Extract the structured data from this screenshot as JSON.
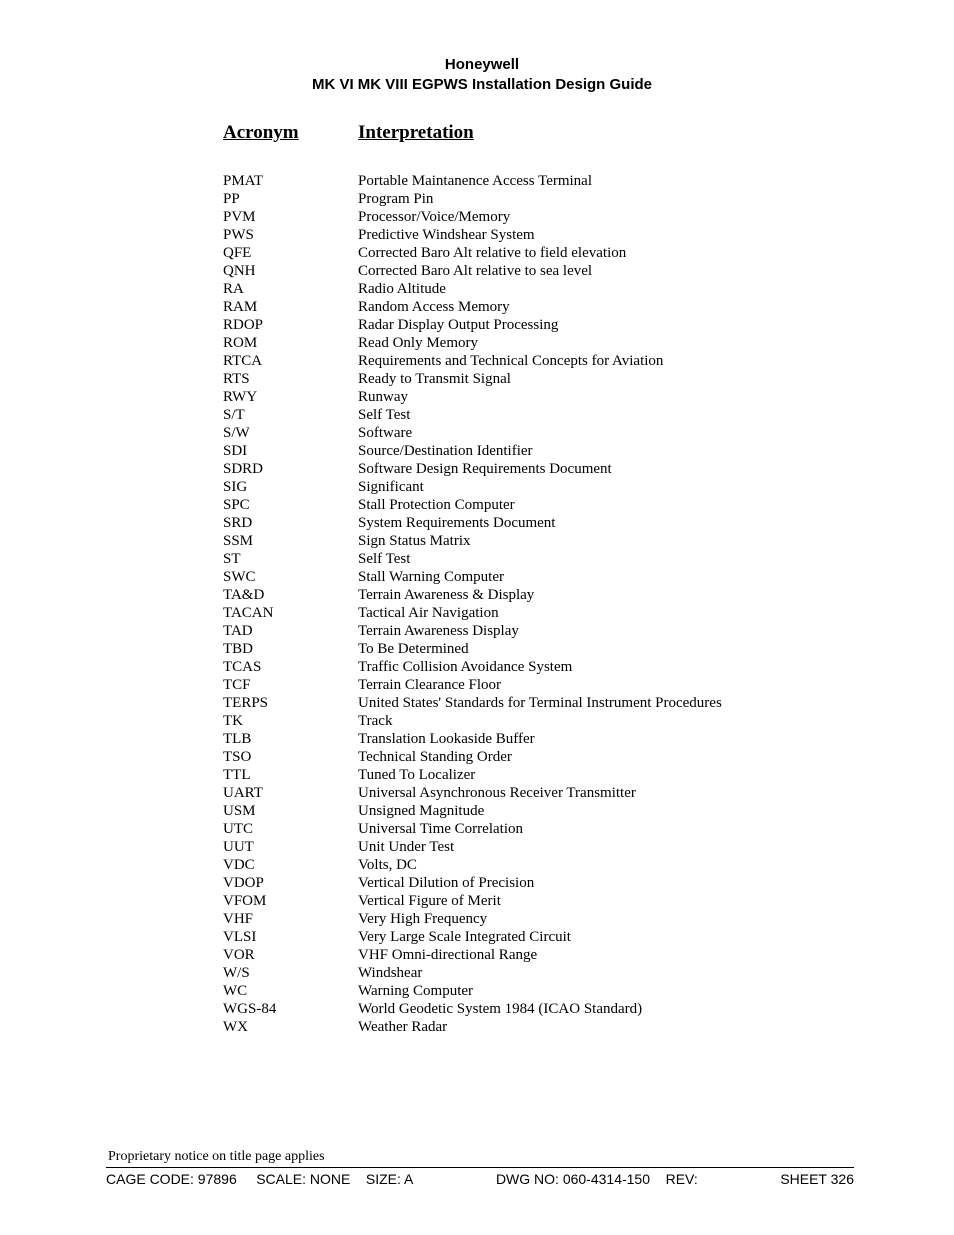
{
  "header": {
    "line1": "Honeywell",
    "line2": "MK VI  MK VIII EGPWS Installation Design Guide"
  },
  "columns": {
    "acronym": "Acronym",
    "interpretation": "Interpretation"
  },
  "rows": [
    {
      "a": "PMAT",
      "i": "Portable Maintanence Access Terminal"
    },
    {
      "a": "PP",
      "i": "Program Pin"
    },
    {
      "a": "PVM",
      "i": "Processor/Voice/Memory"
    },
    {
      "a": "PWS",
      "i": "Predictive Windshear System"
    },
    {
      "a": "QFE",
      "i": "Corrected Baro Alt relative to field elevation"
    },
    {
      "a": "QNH",
      "i": "Corrected Baro Alt relative to sea level"
    },
    {
      "a": "RA",
      "i": "Radio Altitude"
    },
    {
      "a": "RAM",
      "i": "Random Access Memory"
    },
    {
      "a": "RDOP",
      "i": "Radar Display Output Processing"
    },
    {
      "a": "ROM",
      "i": "Read Only Memory"
    },
    {
      "a": "RTCA",
      "i": "Requirements and Technical Concepts for Aviation"
    },
    {
      "a": "RTS",
      "i": "Ready to Transmit Signal"
    },
    {
      "a": "RWY",
      "i": "Runway"
    },
    {
      "a": "S/T",
      "i": "Self Test"
    },
    {
      "a": "S/W",
      "i": "Software"
    },
    {
      "a": "SDI",
      "i": "Source/Destination Identifier"
    },
    {
      "a": "SDRD",
      "i": "Software Design Requirements Document"
    },
    {
      "a": "SIG",
      "i": "Significant"
    },
    {
      "a": "SPC",
      "i": "Stall Protection Computer"
    },
    {
      "a": "SRD",
      "i": "System Requirements Document"
    },
    {
      "a": "SSM",
      "i": "Sign Status Matrix"
    },
    {
      "a": "ST",
      "i": "Self Test"
    },
    {
      "a": "SWC",
      "i": "Stall Warning Computer"
    },
    {
      "a": "TA&D",
      "i": "Terrain Awareness & Display"
    },
    {
      "a": "TACAN",
      "i": "Tactical Air Navigation"
    },
    {
      "a": "TAD",
      "i": "Terrain Awareness Display"
    },
    {
      "a": "TBD",
      "i": "To Be Determined"
    },
    {
      "a": "TCAS",
      "i": "Traffic Collision Avoidance System"
    },
    {
      "a": "TCF",
      "i": "Terrain Clearance Floor"
    },
    {
      "a": "TERPS",
      "i": "United States' Standards for Terminal Instrument Procedures"
    },
    {
      "a": "TK",
      "i": "Track"
    },
    {
      "a": "TLB",
      "i": "Translation Lookaside Buffer"
    },
    {
      "a": "TSO",
      "i": "Technical Standing Order"
    },
    {
      "a": "TTL",
      "i": "Tuned To Localizer"
    },
    {
      "a": "UART",
      "i": "Universal Asynchronous Receiver Transmitter"
    },
    {
      "a": "USM",
      "i": "Unsigned Magnitude"
    },
    {
      "a": "UTC",
      "i": "Universal Time Correlation"
    },
    {
      "a": "UUT",
      "i": "Unit Under Test"
    },
    {
      "a": "VDC",
      "i": "Volts, DC"
    },
    {
      "a": "VDOP",
      "i": "Vertical Dilution of Precision"
    },
    {
      "a": "VFOM",
      "i": "Vertical Figure of Merit"
    },
    {
      "a": "VHF",
      "i": "Very High Frequency"
    },
    {
      "a": "VLSI",
      "i": "Very Large Scale Integrated Circuit"
    },
    {
      "a": "VOR",
      "i": "VHF Omni-directional Range"
    },
    {
      "a": "W/S",
      "i": "Windshear"
    },
    {
      "a": "WC",
      "i": "Warning Computer"
    },
    {
      "a": "WGS-84",
      "i": "World Geodetic System 1984 (ICAO Standard)"
    },
    {
      "a": "WX",
      "i": "Weather Radar"
    }
  ],
  "footer": {
    "proprietary": "Proprietary notice on title page applies",
    "cage": "CAGE CODE: 97896",
    "scale": "SCALE: NONE",
    "size": "SIZE: A",
    "dwg": "DWG NO: 060-4314-150",
    "rev": "REV:",
    "sheet_label": "SHEET",
    "sheet_num": "326"
  }
}
